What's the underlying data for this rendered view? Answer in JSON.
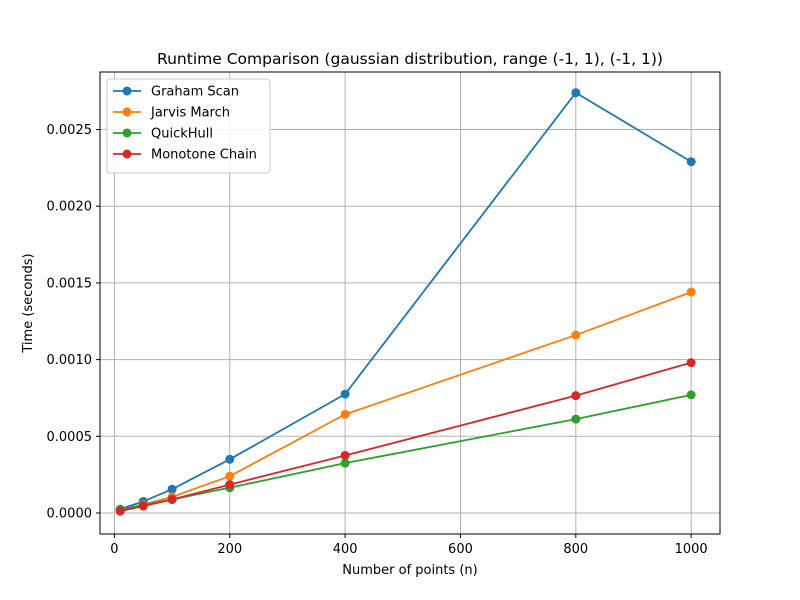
{
  "chart_data": {
    "type": "line",
    "title": "Runtime Comparison (gaussian distribution, range (-1, 1), (-1, 1))",
    "xlabel": "Number of points (n)",
    "ylabel": "Time (seconds)",
    "xlim": [
      -25,
      1050
    ],
    "ylim": [
      -0.000137,
      0.002875
    ],
    "xticks": [
      0,
      200,
      400,
      600,
      800,
      1000
    ],
    "xtick_labels": [
      "0",
      "200",
      "400",
      "600",
      "800",
      "1000"
    ],
    "yticks": [
      0,
      0.0005,
      0.001,
      0.0015,
      0.002,
      0.0025
    ],
    "ytick_labels": [
      "0.0000",
      "0.0005",
      "0.0010",
      "0.0015",
      "0.0020",
      "0.0025"
    ],
    "grid": true,
    "legend_position": "upper-left",
    "x": [
      10,
      50,
      100,
      200,
      400,
      800,
      1000
    ],
    "series": [
      {
        "name": "Graham Scan",
        "color": "#1f77b4",
        "values": [
          2.5e-05,
          7.5e-05,
          0.000155,
          0.00035,
          0.000775,
          0.00274,
          0.00229
        ]
      },
      {
        "name": "Jarvis March",
        "color": "#ff7f0e",
        "values": [
          1.8e-05,
          5.5e-05,
          0.000105,
          0.00024,
          0.000643,
          0.00116,
          0.00144
        ]
      },
      {
        "name": "QuickHull",
        "color": "#2ca02c",
        "values": [
          2.2e-05,
          5.2e-05,
          8.8e-05,
          0.000165,
          0.000325,
          0.000612,
          0.00077
        ]
      },
      {
        "name": "Monotone Chain",
        "color": "#d62728",
        "values": [
          1.2e-05,
          4.5e-05,
          8.8e-05,
          0.000185,
          0.000375,
          0.000765,
          0.00098
        ]
      }
    ]
  }
}
